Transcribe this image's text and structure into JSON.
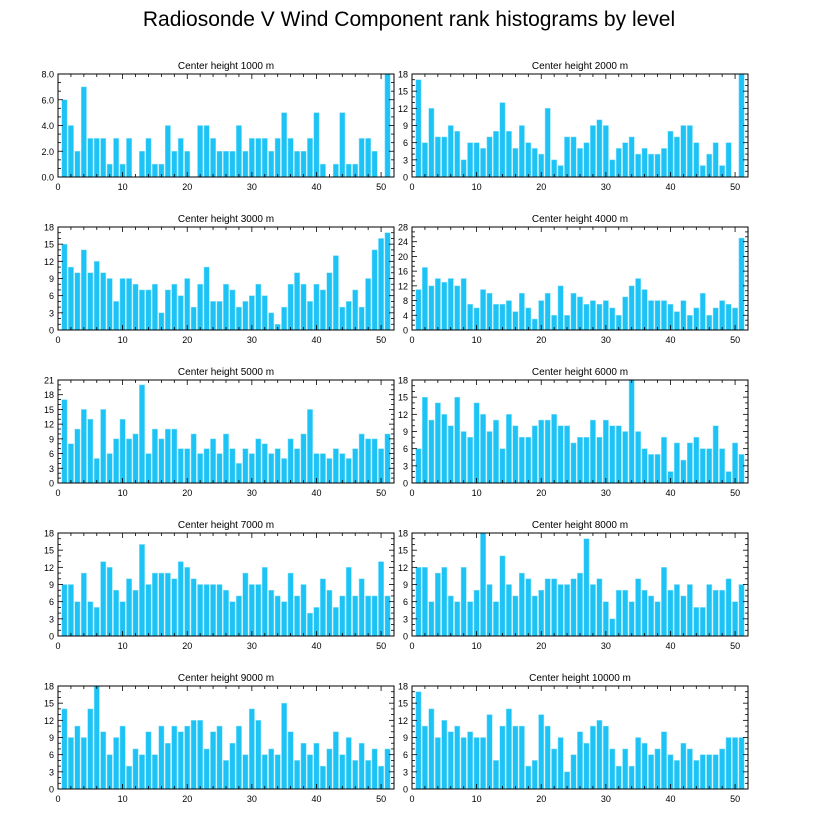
{
  "title": "Radiosonde V Wind Component rank histograms by level",
  "style": {
    "bar_color": "#1EC3F5",
    "bar_edge": "#8FE3FB",
    "axis_color": "#000000"
  },
  "chart_data": [
    {
      "type": "bar",
      "title": "Center height 1000 m",
      "xlim": [
        0,
        52
      ],
      "ylim": [
        0,
        8
      ],
      "yticks": [
        0.0,
        2.0,
        4.0,
        6.0,
        8.0
      ],
      "yticklabels": [
        "0.0",
        "2.0",
        "4.0",
        "6.0",
        "8.0"
      ],
      "xticks": [
        0,
        10,
        20,
        30,
        40,
        50
      ],
      "xticklabels": [
        "0",
        "10",
        "20",
        "30",
        "40",
        "50"
      ],
      "categories": [
        1,
        2,
        3,
        4,
        5,
        6,
        7,
        8,
        9,
        10,
        11,
        12,
        13,
        14,
        15,
        16,
        17,
        18,
        19,
        20,
        21,
        22,
        23,
        24,
        25,
        26,
        27,
        28,
        29,
        30,
        31,
        32,
        33,
        34,
        35,
        36,
        37,
        38,
        39,
        40,
        41,
        42,
        43,
        44,
        45,
        46,
        47,
        48,
        49,
        50,
        51
      ],
      "values": [
        6,
        4,
        2,
        7,
        3,
        3,
        3,
        1,
        3,
        1,
        3,
        0,
        2,
        3,
        1,
        1,
        4,
        2,
        3,
        2,
        0,
        4,
        4,
        3,
        2,
        2,
        2,
        4,
        2,
        3,
        3,
        3,
        2,
        3,
        5,
        3,
        2,
        2,
        3,
        5,
        1,
        0,
        1,
        5,
        1,
        1,
        3,
        3,
        2,
        0,
        8
      ]
    },
    {
      "type": "bar",
      "title": "Center height 2000 m",
      "xlim": [
        0,
        52
      ],
      "ylim": [
        0,
        18
      ],
      "yticks": [
        0,
        3,
        6,
        9,
        12,
        15,
        18
      ],
      "yticklabels": [
        "0",
        "3",
        "6",
        "9",
        "12",
        "15",
        "18"
      ],
      "xticks": [
        0,
        10,
        20,
        30,
        40,
        50
      ],
      "xticklabels": [
        "0",
        "10",
        "20",
        "30",
        "40",
        "50"
      ],
      "categories": [
        1,
        2,
        3,
        4,
        5,
        6,
        7,
        8,
        9,
        10,
        11,
        12,
        13,
        14,
        15,
        16,
        17,
        18,
        19,
        20,
        21,
        22,
        23,
        24,
        25,
        26,
        27,
        28,
        29,
        30,
        31,
        32,
        33,
        34,
        35,
        36,
        37,
        38,
        39,
        40,
        41,
        42,
        43,
        44,
        45,
        46,
        47,
        48,
        49,
        50,
        51
      ],
      "values": [
        17,
        6,
        12,
        7,
        7,
        9,
        8,
        3,
        6,
        6,
        5,
        7,
        8,
        13,
        8,
        5,
        9,
        6,
        5,
        4,
        12,
        3,
        2,
        7,
        7,
        5,
        6,
        9,
        10,
        9,
        3,
        5,
        6,
        7,
        4,
        5,
        4,
        4,
        5,
        8,
        7,
        9,
        9,
        6,
        2,
        4,
        6,
        2,
        6,
        0,
        18
      ]
    },
    {
      "type": "bar",
      "title": "Center height 3000 m",
      "xlim": [
        0,
        52
      ],
      "ylim": [
        0,
        18
      ],
      "yticks": [
        0,
        3,
        6,
        9,
        12,
        15,
        18
      ],
      "yticklabels": [
        "0",
        "3",
        "6",
        "9",
        "12",
        "15",
        "18"
      ],
      "xticks": [
        0,
        10,
        20,
        30,
        40,
        50
      ],
      "xticklabels": [
        "0",
        "10",
        "20",
        "30",
        "40",
        "50"
      ],
      "categories": [
        1,
        2,
        3,
        4,
        5,
        6,
        7,
        8,
        9,
        10,
        11,
        12,
        13,
        14,
        15,
        16,
        17,
        18,
        19,
        20,
        21,
        22,
        23,
        24,
        25,
        26,
        27,
        28,
        29,
        30,
        31,
        32,
        33,
        34,
        35,
        36,
        37,
        38,
        39,
        40,
        41,
        42,
        43,
        44,
        45,
        46,
        47,
        48,
        49,
        50,
        51
      ],
      "values": [
        15,
        11,
        10,
        14,
        10,
        12,
        10,
        9,
        5,
        9,
        9,
        8,
        7,
        7,
        8,
        3,
        7,
        8,
        6,
        9,
        4,
        8,
        11,
        5,
        5,
        8,
        7,
        4,
        5,
        6,
        8,
        6,
        3,
        1,
        4,
        8,
        10,
        8,
        5,
        8,
        7,
        10,
        13,
        4,
        5,
        7,
        4,
        9,
        14,
        16,
        17
      ]
    },
    {
      "type": "bar",
      "title": "Center height 4000 m",
      "xlim": [
        0,
        52
      ],
      "ylim": [
        0,
        28
      ],
      "yticks": [
        0,
        4,
        8,
        12,
        16,
        20,
        24,
        28
      ],
      "yticklabels": [
        "0",
        "4",
        "8",
        "12",
        "16",
        "20",
        "24",
        "28"
      ],
      "xticks": [
        0,
        10,
        20,
        30,
        40,
        50
      ],
      "xticklabels": [
        "0",
        "10",
        "20",
        "30",
        "40",
        "50"
      ],
      "categories": [
        1,
        2,
        3,
        4,
        5,
        6,
        7,
        8,
        9,
        10,
        11,
        12,
        13,
        14,
        15,
        16,
        17,
        18,
        19,
        20,
        21,
        22,
        23,
        24,
        25,
        26,
        27,
        28,
        29,
        30,
        31,
        32,
        33,
        34,
        35,
        36,
        37,
        38,
        39,
        40,
        41,
        42,
        43,
        44,
        45,
        46,
        47,
        48,
        49,
        50,
        51
      ],
      "values": [
        11,
        17,
        12,
        14,
        13,
        14,
        12,
        14,
        7,
        6,
        11,
        10,
        7,
        7,
        8,
        5,
        10,
        6,
        3,
        8,
        10,
        4,
        12,
        4,
        10,
        9,
        7,
        8,
        7,
        8,
        6,
        4,
        9,
        12,
        14,
        11,
        8,
        8,
        8,
        7,
        5,
        8,
        4,
        6,
        10,
        4,
        6,
        8,
        7,
        6,
        25
      ]
    },
    {
      "type": "bar",
      "title": "Center height 5000 m",
      "xlim": [
        0,
        52
      ],
      "ylim": [
        0,
        21
      ],
      "yticks": [
        0,
        3,
        6,
        9,
        12,
        15,
        18,
        21
      ],
      "yticklabels": [
        "0",
        "3",
        "6",
        "9",
        "12",
        "15",
        "18",
        "21"
      ],
      "xticks": [
        0,
        10,
        20,
        30,
        40,
        50
      ],
      "xticklabels": [
        "0",
        "10",
        "20",
        "30",
        "40",
        "50"
      ],
      "categories": [
        1,
        2,
        3,
        4,
        5,
        6,
        7,
        8,
        9,
        10,
        11,
        12,
        13,
        14,
        15,
        16,
        17,
        18,
        19,
        20,
        21,
        22,
        23,
        24,
        25,
        26,
        27,
        28,
        29,
        30,
        31,
        32,
        33,
        34,
        35,
        36,
        37,
        38,
        39,
        40,
        41,
        42,
        43,
        44,
        45,
        46,
        47,
        48,
        49,
        50,
        51
      ],
      "values": [
        17,
        8,
        11,
        15,
        13,
        5,
        15,
        6,
        9,
        13,
        9,
        10,
        20,
        6,
        11,
        9,
        11,
        11,
        7,
        7,
        10,
        6,
        7,
        9,
        6,
        10,
        7,
        4,
        7,
        6,
        9,
        8,
        6,
        7,
        5,
        9,
        7,
        10,
        15,
        6,
        6,
        5,
        7,
        6,
        5,
        7,
        10,
        9,
        9,
        7,
        10
      ]
    },
    {
      "type": "bar",
      "title": "Center height 6000 m",
      "xlim": [
        0,
        52
      ],
      "ylim": [
        0,
        18
      ],
      "yticks": [
        0,
        3,
        6,
        9,
        12,
        15,
        18
      ],
      "yticklabels": [
        "0",
        "3",
        "6",
        "9",
        "12",
        "15",
        "18"
      ],
      "xticks": [
        0,
        10,
        20,
        30,
        40,
        50
      ],
      "xticklabels": [
        "0",
        "10",
        "20",
        "30",
        "40",
        "50"
      ],
      "categories": [
        1,
        2,
        3,
        4,
        5,
        6,
        7,
        8,
        9,
        10,
        11,
        12,
        13,
        14,
        15,
        16,
        17,
        18,
        19,
        20,
        21,
        22,
        23,
        24,
        25,
        26,
        27,
        28,
        29,
        30,
        31,
        32,
        33,
        34,
        35,
        36,
        37,
        38,
        39,
        40,
        41,
        42,
        43,
        44,
        45,
        46,
        47,
        48,
        49,
        50,
        51
      ],
      "values": [
        6,
        15,
        11,
        14,
        12,
        10,
        15,
        9,
        8,
        14,
        12,
        9,
        11,
        6,
        12,
        10,
        8,
        8,
        10,
        11,
        11,
        12,
        10,
        10,
        7,
        8,
        8,
        11,
        8,
        11,
        10,
        10,
        9,
        18,
        9,
        6,
        5,
        5,
        8,
        2,
        7,
        4,
        7,
        8,
        6,
        6,
        10,
        6,
        2,
        7,
        5
      ]
    },
    {
      "type": "bar",
      "title": "Center height 7000 m",
      "xlim": [
        0,
        52
      ],
      "ylim": [
        0,
        18
      ],
      "yticks": [
        0,
        3,
        6,
        9,
        12,
        15,
        18
      ],
      "yticklabels": [
        "0",
        "3",
        "6",
        "9",
        "12",
        "15",
        "18"
      ],
      "xticks": [
        0,
        10,
        20,
        30,
        40,
        50
      ],
      "xticklabels": [
        "0",
        "10",
        "20",
        "30",
        "40",
        "50"
      ],
      "categories": [
        1,
        2,
        3,
        4,
        5,
        6,
        7,
        8,
        9,
        10,
        11,
        12,
        13,
        14,
        15,
        16,
        17,
        18,
        19,
        20,
        21,
        22,
        23,
        24,
        25,
        26,
        27,
        28,
        29,
        30,
        31,
        32,
        33,
        34,
        35,
        36,
        37,
        38,
        39,
        40,
        41,
        42,
        43,
        44,
        45,
        46,
        47,
        48,
        49,
        50,
        51
      ],
      "values": [
        9,
        9,
        6,
        11,
        6,
        5,
        13,
        12,
        8,
        6,
        10,
        8,
        16,
        9,
        11,
        11,
        11,
        10,
        13,
        12,
        10,
        9,
        9,
        9,
        9,
        8,
        6,
        7,
        11,
        9,
        9,
        12,
        8,
        7,
        6,
        11,
        7,
        9,
        4,
        5,
        10,
        8,
        5,
        7,
        12,
        7,
        10,
        7,
        7,
        13,
        7
      ]
    },
    {
      "type": "bar",
      "title": "Center height 8000 m",
      "xlim": [
        0,
        52
      ],
      "ylim": [
        0,
        18
      ],
      "yticks": [
        0,
        3,
        6,
        9,
        12,
        15,
        18
      ],
      "yticklabels": [
        "0",
        "3",
        "6",
        "9",
        "12",
        "15",
        "18"
      ],
      "xticks": [
        0,
        10,
        20,
        30,
        40,
        50
      ],
      "xticklabels": [
        "0",
        "10",
        "20",
        "30",
        "40",
        "50"
      ],
      "categories": [
        1,
        2,
        3,
        4,
        5,
        6,
        7,
        8,
        9,
        10,
        11,
        12,
        13,
        14,
        15,
        16,
        17,
        18,
        19,
        20,
        21,
        22,
        23,
        24,
        25,
        26,
        27,
        28,
        29,
        30,
        31,
        32,
        33,
        34,
        35,
        36,
        37,
        38,
        39,
        40,
        41,
        42,
        43,
        44,
        45,
        46,
        47,
        48,
        49,
        50,
        51
      ],
      "values": [
        12,
        12,
        6,
        11,
        12,
        7,
        6,
        12,
        6,
        8,
        18,
        9,
        6,
        14,
        9,
        7,
        11,
        10,
        7,
        8,
        10,
        10,
        9,
        9,
        10,
        11,
        17,
        9,
        10,
        6,
        3,
        8,
        8,
        6,
        10,
        8,
        7,
        6,
        12,
        8,
        9,
        7,
        9,
        5,
        5,
        9,
        8,
        8,
        10,
        6,
        9
      ]
    },
    {
      "type": "bar",
      "title": "Center height 9000 m",
      "xlim": [
        0,
        52
      ],
      "ylim": [
        0,
        18
      ],
      "yticks": [
        0,
        3,
        6,
        9,
        12,
        15,
        18
      ],
      "yticklabels": [
        "0",
        "3",
        "6",
        "9",
        "12",
        "15",
        "18"
      ],
      "xticks": [
        0,
        10,
        20,
        30,
        40,
        50
      ],
      "xticklabels": [
        "0",
        "10",
        "20",
        "30",
        "40",
        "50"
      ],
      "categories": [
        1,
        2,
        3,
        4,
        5,
        6,
        7,
        8,
        9,
        10,
        11,
        12,
        13,
        14,
        15,
        16,
        17,
        18,
        19,
        20,
        21,
        22,
        23,
        24,
        25,
        26,
        27,
        28,
        29,
        30,
        31,
        32,
        33,
        34,
        35,
        36,
        37,
        38,
        39,
        40,
        41,
        42,
        43,
        44,
        45,
        46,
        47,
        48,
        49,
        50,
        51
      ],
      "values": [
        14,
        9,
        11,
        9,
        14,
        18,
        10,
        6,
        9,
        11,
        4,
        7,
        6,
        10,
        6,
        11,
        8,
        11,
        10,
        11,
        12,
        12,
        7,
        10,
        11,
        5,
        8,
        11,
        6,
        14,
        12,
        6,
        7,
        6,
        15,
        10,
        5,
        8,
        6,
        8,
        4,
        7,
        10,
        6,
        9,
        5,
        8,
        5,
        7,
        4,
        7
      ]
    },
    {
      "type": "bar",
      "title": "Center height 10000 m",
      "xlim": [
        0,
        52
      ],
      "ylim": [
        0,
        18
      ],
      "yticks": [
        0,
        3,
        6,
        9,
        12,
        15,
        18
      ],
      "yticklabels": [
        "0",
        "3",
        "6",
        "9",
        "12",
        "15",
        "18"
      ],
      "xticks": [
        0,
        10,
        20,
        30,
        40,
        50
      ],
      "xticklabels": [
        "0",
        "10",
        "20",
        "30",
        "40",
        "50"
      ],
      "categories": [
        1,
        2,
        3,
        4,
        5,
        6,
        7,
        8,
        9,
        10,
        11,
        12,
        13,
        14,
        15,
        16,
        17,
        18,
        19,
        20,
        21,
        22,
        23,
        24,
        25,
        26,
        27,
        28,
        29,
        30,
        31,
        32,
        33,
        34,
        35,
        36,
        37,
        38,
        39,
        40,
        41,
        42,
        43,
        44,
        45,
        46,
        47,
        48,
        49,
        50,
        51
      ],
      "values": [
        17,
        11,
        14,
        9,
        12,
        10,
        11,
        9,
        10,
        9,
        9,
        13,
        5,
        11,
        14,
        11,
        11,
        4,
        5,
        13,
        11,
        7,
        9,
        3,
        6,
        10,
        8,
        11,
        12,
        11,
        7,
        4,
        7,
        4,
        9,
        8,
        6,
        7,
        10,
        6,
        5,
        8,
        7,
        5,
        6,
        6,
        6,
        7,
        9,
        9,
        9
      ]
    }
  ]
}
